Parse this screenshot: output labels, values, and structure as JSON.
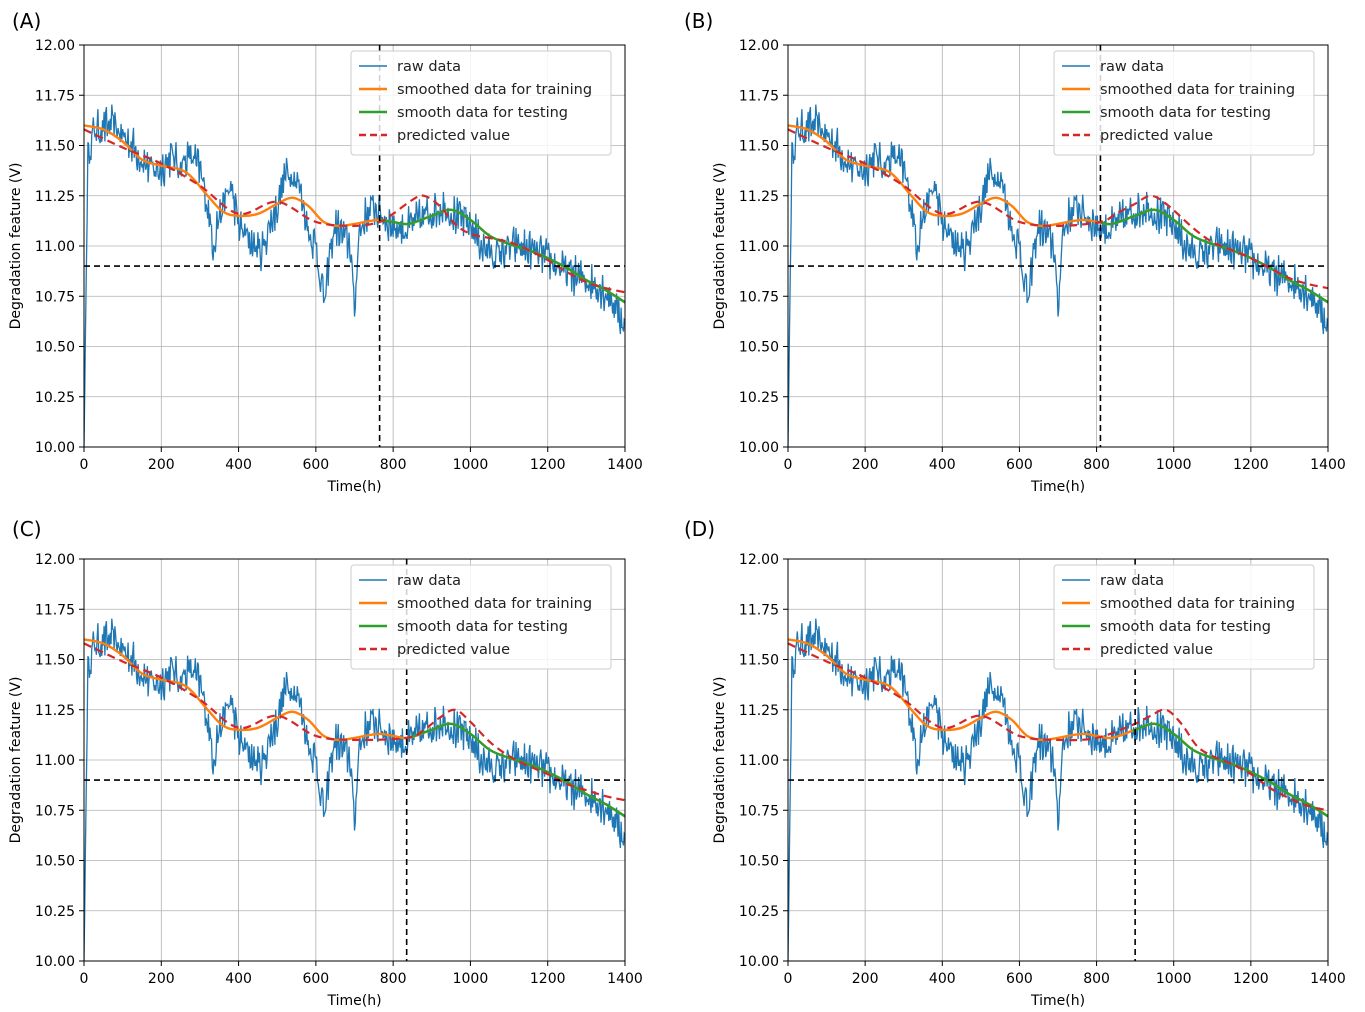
{
  "chart_data": [
    {
      "type": "line",
      "panel_label": "(A)",
      "xlabel": "Time(h)",
      "ylabel": "Degradation feature (V)",
      "xlim": [
        0,
        1400
      ],
      "ylim": [
        10.0,
        12.0
      ],
      "xticks": [
        0,
        200,
        400,
        600,
        800,
        1000,
        1200,
        1400
      ],
      "yticks": [
        10.0,
        10.25,
        10.5,
        10.75,
        11.0,
        11.25,
        11.5,
        11.75,
        12.0
      ],
      "grid": true,
      "legend_position": "top-right",
      "threshold": 10.9,
      "split_time": 765,
      "series": [
        {
          "name": "raw data",
          "color": "#1f77b4",
          "style": "solid"
        },
        {
          "name": "smoothed data for training",
          "color": "#ff7f0e",
          "style": "solid"
        },
        {
          "name": "smooth data for testing",
          "color": "#2ca02c",
          "style": "solid"
        },
        {
          "name": "predicted value",
          "color": "#d62728",
          "style": "dashed",
          "x": [
            0,
            100,
            200,
            300,
            400,
            500,
            600,
            700,
            765,
            800,
            850,
            880,
            920,
            960,
            1000,
            1050,
            1100,
            1150,
            1200,
            1250,
            1300,
            1350,
            1400
          ],
          "y": [
            11.58,
            11.49,
            11.41,
            11.3,
            11.16,
            11.22,
            11.12,
            11.1,
            11.12,
            11.16,
            11.23,
            11.25,
            11.2,
            11.11,
            11.06,
            11.04,
            11.02,
            10.98,
            10.93,
            10.87,
            10.82,
            10.79,
            10.77
          ]
        }
      ]
    },
    {
      "type": "line",
      "panel_label": "(B)",
      "xlabel": "Time(h)",
      "ylabel": "Degradation feature (V)",
      "xlim": [
        0,
        1400
      ],
      "ylim": [
        10.0,
        12.0
      ],
      "xticks": [
        0,
        200,
        400,
        600,
        800,
        1000,
        1200,
        1400
      ],
      "yticks": [
        10.0,
        10.25,
        10.5,
        10.75,
        11.0,
        11.25,
        11.5,
        11.75,
        12.0
      ],
      "grid": true,
      "legend_position": "top-right",
      "threshold": 10.9,
      "split_time": 810,
      "series": [
        {
          "name": "raw data",
          "color": "#1f77b4",
          "style": "solid"
        },
        {
          "name": "smoothed data for training",
          "color": "#ff7f0e",
          "style": "solid"
        },
        {
          "name": "smooth data for testing",
          "color": "#2ca02c",
          "style": "solid"
        },
        {
          "name": "predicted value",
          "color": "#d62728",
          "style": "dashed",
          "x": [
            0,
            100,
            200,
            300,
            400,
            500,
            600,
            700,
            810,
            850,
            900,
            940,
            980,
            1050,
            1100,
            1150,
            1200,
            1250,
            1300,
            1350,
            1400
          ],
          "y": [
            11.58,
            11.49,
            11.41,
            11.3,
            11.16,
            11.22,
            11.12,
            11.1,
            11.12,
            11.16,
            11.21,
            11.25,
            11.21,
            11.09,
            11.02,
            10.98,
            10.94,
            10.89,
            10.84,
            10.81,
            10.79
          ]
        }
      ]
    },
    {
      "type": "line",
      "panel_label": "(C)",
      "xlabel": "Time(h)",
      "ylabel": "Degradation feature (V)",
      "xlim": [
        0,
        1400
      ],
      "ylim": [
        10.0,
        12.0
      ],
      "xticks": [
        0,
        200,
        400,
        600,
        800,
        1000,
        1200,
        1400
      ],
      "yticks": [
        10.0,
        10.25,
        10.5,
        10.75,
        11.0,
        11.25,
        11.5,
        11.75,
        12.0
      ],
      "grid": true,
      "legend_position": "top-right",
      "threshold": 10.9,
      "split_time": 835,
      "series": [
        {
          "name": "raw data",
          "color": "#1f77b4",
          "style": "solid"
        },
        {
          "name": "smoothed data for training",
          "color": "#ff7f0e",
          "style": "solid"
        },
        {
          "name": "smooth data for testing",
          "color": "#2ca02c",
          "style": "solid"
        },
        {
          "name": "predicted value",
          "color": "#d62728",
          "style": "dashed",
          "x": [
            0,
            100,
            200,
            300,
            400,
            500,
            600,
            700,
            835,
            880,
            920,
            960,
            1000,
            1050,
            1100,
            1150,
            1200,
            1250,
            1300,
            1350,
            1400
          ],
          "y": [
            11.58,
            11.49,
            11.41,
            11.3,
            11.16,
            11.22,
            11.12,
            11.1,
            11.11,
            11.15,
            11.21,
            11.25,
            11.19,
            11.09,
            11.02,
            10.97,
            10.93,
            10.88,
            10.85,
            10.82,
            10.8
          ]
        }
      ]
    },
    {
      "type": "line",
      "panel_label": "(D)",
      "xlabel": "Time(h)",
      "ylabel": "Degradation feature (V)",
      "xlim": [
        0,
        1400
      ],
      "ylim": [
        10.0,
        12.0
      ],
      "xticks": [
        0,
        200,
        400,
        600,
        800,
        1000,
        1200,
        1400
      ],
      "yticks": [
        10.0,
        10.25,
        10.5,
        10.75,
        11.0,
        11.25,
        11.5,
        11.75,
        12.0
      ],
      "grid": true,
      "legend_position": "top-right",
      "threshold": 10.9,
      "split_time": 900,
      "series": [
        {
          "name": "raw data",
          "color": "#1f77b4",
          "style": "solid"
        },
        {
          "name": "smoothed data for training",
          "color": "#ff7f0e",
          "style": "solid"
        },
        {
          "name": "smooth data for testing",
          "color": "#2ca02c",
          "style": "solid"
        },
        {
          "name": "predicted value",
          "color": "#d62728",
          "style": "dashed",
          "x": [
            0,
            100,
            200,
            300,
            400,
            500,
            600,
            700,
            800,
            900,
            940,
            980,
            1020,
            1060,
            1100,
            1150,
            1200,
            1250,
            1300,
            1350,
            1400
          ],
          "y": [
            11.58,
            11.49,
            11.41,
            11.3,
            11.16,
            11.22,
            11.12,
            11.1,
            11.11,
            11.18,
            11.22,
            11.25,
            11.18,
            11.07,
            11.02,
            10.98,
            10.93,
            10.86,
            10.81,
            10.77,
            10.75
          ]
        }
      ]
    }
  ],
  "shared": {
    "raw_data": {
      "name": "raw data",
      "x": [
        0,
        10,
        25,
        50,
        75,
        100,
        125,
        150,
        175,
        200,
        225,
        250,
        275,
        300,
        320,
        335,
        345,
        360,
        380,
        400,
        420,
        440,
        460,
        480,
        500,
        520,
        540,
        560,
        580,
        600,
        615,
        625,
        635,
        650,
        670,
        690,
        700,
        710,
        730,
        750,
        770,
        800,
        830,
        860,
        900,
        930,
        960,
        990,
        1010,
        1030,
        1060,
        1090,
        1120,
        1150,
        1180,
        1210,
        1240,
        1270,
        1300,
        1330,
        1360,
        1380,
        1400
      ],
      "y": [
        10.0,
        11.45,
        11.57,
        11.59,
        11.6,
        11.55,
        11.5,
        11.43,
        11.38,
        11.38,
        11.45,
        11.4,
        11.45,
        11.38,
        11.2,
        11.0,
        11.12,
        11.2,
        11.3,
        11.1,
        11.05,
        11.0,
        10.97,
        11.1,
        11.2,
        11.35,
        11.37,
        11.28,
        11.08,
        11.0,
        10.8,
        10.72,
        10.95,
        11.1,
        11.05,
        11.0,
        10.65,
        11.05,
        11.15,
        11.2,
        11.15,
        11.1,
        11.08,
        11.12,
        11.17,
        11.2,
        11.15,
        11.12,
        11.08,
        11.0,
        10.95,
        10.98,
        11.0,
        10.98,
        10.96,
        10.92,
        10.88,
        10.85,
        10.83,
        10.8,
        10.75,
        10.68,
        10.6
      ]
    },
    "smoothed": {
      "x": [
        0,
        50,
        100,
        150,
        200,
        250,
        280,
        320,
        360,
        400,
        450,
        500,
        540,
        580,
        620,
        660,
        700,
        760,
        800,
        840,
        900,
        950,
        1000,
        1050,
        1100,
        1150,
        1200,
        1250,
        1300,
        1350,
        1400
      ],
      "y": [
        11.6,
        11.58,
        11.52,
        11.43,
        11.4,
        11.38,
        11.34,
        11.25,
        11.17,
        11.15,
        11.16,
        11.21,
        11.24,
        11.2,
        11.12,
        11.1,
        11.11,
        11.13,
        11.12,
        11.11,
        11.15,
        11.18,
        11.13,
        11.05,
        11.01,
        10.98,
        10.94,
        10.89,
        10.83,
        10.78,
        10.72
      ]
    }
  }
}
